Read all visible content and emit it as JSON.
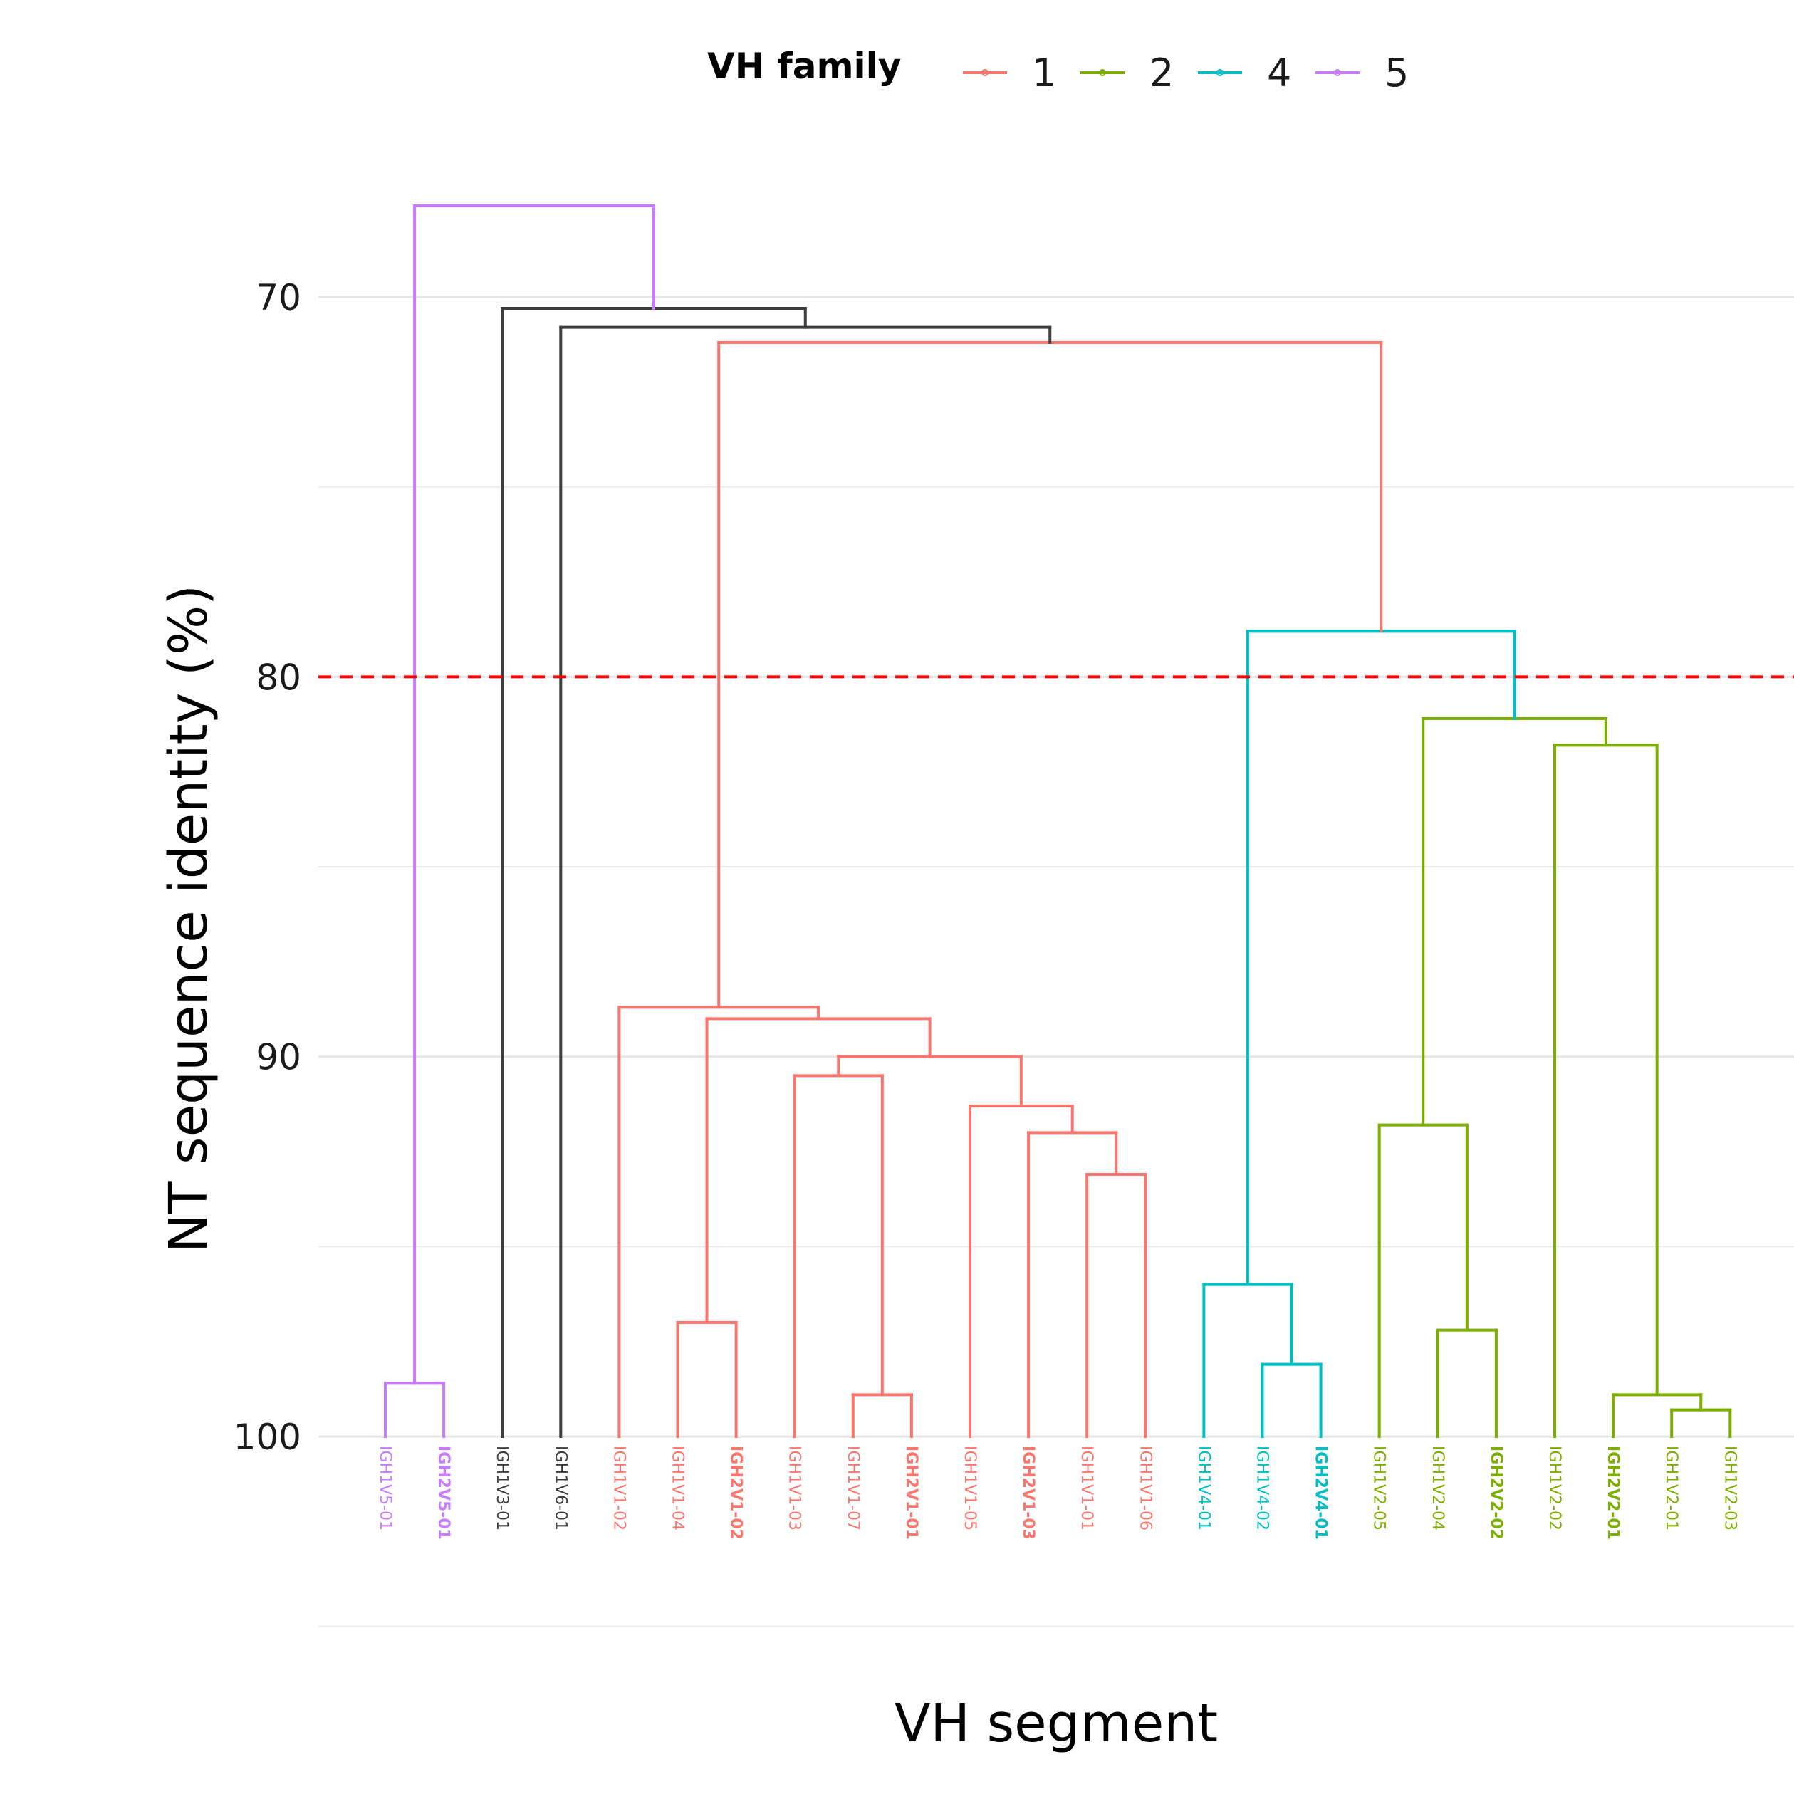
{
  "chart_data": {
    "type": "dendrogram",
    "xlabel": "VH segment",
    "ylabel": "NT sequence identity (%)",
    "ylim": [
      100,
      67.6
    ],
    "y_direction": "reversed",
    "y_ticks": [
      70,
      80,
      90,
      100
    ],
    "y_tick_labels": [
      "70",
      "80",
      "90",
      "100"
    ],
    "minor_grid": [
      75,
      85,
      95,
      105
    ],
    "grid": true,
    "threshold": {
      "value": 80,
      "color": "#ff0000",
      "style": "dashed"
    },
    "legend": {
      "title": "VH family",
      "position": "top",
      "entries": [
        {
          "label": "1",
          "color": "#f8766d"
        },
        {
          "label": "2",
          "color": "#7cae00"
        },
        {
          "label": "4",
          "color": "#00bfc4"
        },
        {
          "label": "5",
          "color": "#c77cff"
        }
      ]
    },
    "colors": {
      "f1": "#f8766d",
      "f2": "#7cae00",
      "f4": "#00bfc4",
      "f5": "#c77cff",
      "other": "#3d3d3d"
    },
    "leaves": [
      {
        "label": "IGH1V5-01",
        "family": "5",
        "bold": false
      },
      {
        "label": "IGH2V5-01",
        "family": "5",
        "bold": true
      },
      {
        "label": "IGH1V3-01",
        "family": "other",
        "bold": false
      },
      {
        "label": "IGH1V6-01",
        "family": "other",
        "bold": false
      },
      {
        "label": "IGH1V1-02",
        "family": "1",
        "bold": false
      },
      {
        "label": "IGH1V1-04",
        "family": "1",
        "bold": false
      },
      {
        "label": "IGH2V1-02",
        "family": "1",
        "bold": true
      },
      {
        "label": "IGH1V1-03",
        "family": "1",
        "bold": false
      },
      {
        "label": "IGH1V1-07",
        "family": "1",
        "bold": false
      },
      {
        "label": "IGH2V1-01",
        "family": "1",
        "bold": true
      },
      {
        "label": "IGH1V1-05",
        "family": "1",
        "bold": false
      },
      {
        "label": "IGH2V1-03",
        "family": "1",
        "bold": true
      },
      {
        "label": "IGH1V1-01",
        "family": "1",
        "bold": false
      },
      {
        "label": "IGH1V1-06",
        "family": "1",
        "bold": false
      },
      {
        "label": "IGH1V4-01",
        "family": "4",
        "bold": false
      },
      {
        "label": "IGH1V4-02",
        "family": "4",
        "bold": false
      },
      {
        "label": "IGH2V4-01",
        "family": "4",
        "bold": true
      },
      {
        "label": "IGH1V2-05",
        "family": "2",
        "bold": false
      },
      {
        "label": "IGH1V2-04",
        "family": "2",
        "bold": false
      },
      {
        "label": "IGH2V2-02",
        "family": "2",
        "bold": true
      },
      {
        "label": "IGH1V2-02",
        "family": "2",
        "bold": false
      },
      {
        "label": "IGH2V2-01",
        "family": "2",
        "bold": true
      },
      {
        "label": "IGH1V2-01",
        "family": "2",
        "bold": false
      },
      {
        "label": "IGH1V2-03",
        "family": "2",
        "bold": false
      }
    ],
    "merges": [
      {
        "id": "n1",
        "left": 0,
        "right": 1,
        "height": 98.6,
        "family": "5"
      },
      {
        "id": "n2",
        "left": 5,
        "right": 6,
        "height": 97.0,
        "family": "1"
      },
      {
        "id": "n3",
        "left": 8,
        "right": 9,
        "height": 98.9,
        "family": "1"
      },
      {
        "id": "n4",
        "left": 7,
        "right": "n3",
        "height": 90.5,
        "family": "1"
      },
      {
        "id": "n5",
        "left": 12,
        "right": 13,
        "height": 93.1,
        "family": "1"
      },
      {
        "id": "n6",
        "left": 11,
        "right": "n5",
        "height": 92.0,
        "family": "1"
      },
      {
        "id": "n7",
        "left": 10,
        "right": "n6",
        "height": 91.3,
        "family": "1"
      },
      {
        "id": "n8",
        "left": "n4",
        "right": "n7",
        "height": 90.0,
        "family": "1"
      },
      {
        "id": "n9",
        "left": "n2",
        "right": "n8",
        "height": 89.0,
        "family": "1"
      },
      {
        "id": "n10",
        "left": 4,
        "right": "n9",
        "height": 88.7,
        "family": "1"
      },
      {
        "id": "n11",
        "left": 15,
        "right": 16,
        "height": 98.1,
        "family": "4"
      },
      {
        "id": "n12",
        "left": 14,
        "right": "n11",
        "height": 96.0,
        "family": "4"
      },
      {
        "id": "n13",
        "left": 18,
        "right": 19,
        "height": 97.2,
        "family": "2"
      },
      {
        "id": "n14",
        "left": 17,
        "right": "n13",
        "height": 91.8,
        "family": "2"
      },
      {
        "id": "n15",
        "left": 22,
        "right": 23,
        "height": 99.3,
        "family": "2"
      },
      {
        "id": "n16",
        "left": 21,
        "right": "n15",
        "height": 98.9,
        "family": "2"
      },
      {
        "id": "n17",
        "left": 20,
        "right": "n16",
        "height": 81.8,
        "family": "2"
      },
      {
        "id": "n18",
        "left": "n14",
        "right": "n17",
        "height": 81.1,
        "family": "2"
      },
      {
        "id": "n19",
        "left": "n12",
        "right": "n18",
        "height": 78.8,
        "family": "4"
      },
      {
        "id": "n20",
        "left": "n10",
        "right": "n19",
        "height": 71.2,
        "family": "1"
      },
      {
        "id": "n21",
        "left": 3,
        "right": "n20",
        "height": 70.8,
        "family": "other"
      },
      {
        "id": "n22",
        "left": 2,
        "right": "n21",
        "height": 70.3,
        "family": "other"
      },
      {
        "id": "n23",
        "left": "n1",
        "right": "n22",
        "height": 67.6,
        "family": "5"
      }
    ]
  }
}
